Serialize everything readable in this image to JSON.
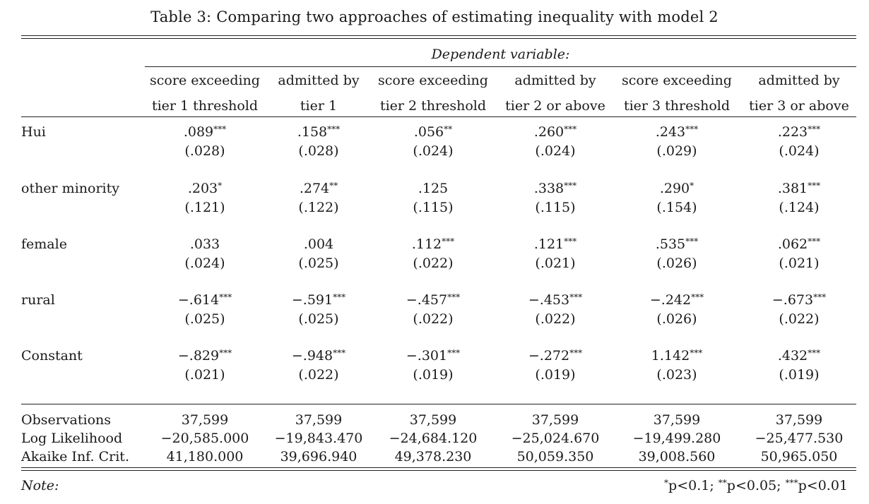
{
  "caption": "Table 3: Comparing two approaches of estimating inequality with model 2",
  "dependent_variable_label": "Dependent variable:",
  "columns": [
    {
      "line1": "score exceeding",
      "line2": "tier 1 threshold"
    },
    {
      "line1": "admitted by",
      "line2": "tier 1"
    },
    {
      "line1": "score exceeding",
      "line2": "tier 2 threshold"
    },
    {
      "line1": "admitted by",
      "line2": "tier 2 or above"
    },
    {
      "line1": "score exceeding",
      "line2": "tier 3 threshold"
    },
    {
      "line1": "admitted by",
      "line2": "tier 3 or above"
    }
  ],
  "rows": [
    {
      "label": "Hui",
      "coefs": [
        ".089",
        ".158",
        ".056",
        ".260",
        ".243",
        ".223"
      ],
      "stars": [
        "***",
        "***",
        "**",
        "***",
        "***",
        "***"
      ],
      "ses": [
        "(.028)",
        "(.028)",
        "(.024)",
        "(.024)",
        "(.029)",
        "(.024)"
      ]
    },
    {
      "label": "other minority",
      "coefs": [
        ".203",
        ".274",
        ".125",
        ".338",
        ".290",
        ".381"
      ],
      "stars": [
        "*",
        "**",
        "",
        "***",
        "*",
        "***"
      ],
      "ses": [
        "(.121)",
        "(.122)",
        "(.115)",
        "(.115)",
        "(.154)",
        "(.124)"
      ]
    },
    {
      "label": "female",
      "coefs": [
        ".033",
        ".004",
        ".112",
        ".121",
        ".535",
        ".062"
      ],
      "stars": [
        "",
        "",
        "***",
        "***",
        "***",
        "***"
      ],
      "ses": [
        "(.024)",
        "(.025)",
        "(.022)",
        "(.021)",
        "(.026)",
        "(.021)"
      ]
    },
    {
      "label": "rural",
      "coefs": [
        "−.614",
        "−.591",
        "−.457",
        "−.453",
        "−.242",
        "−.673"
      ],
      "stars": [
        "***",
        "***",
        "***",
        "***",
        "***",
        "***"
      ],
      "ses": [
        "(.025)",
        "(.025)",
        "(.022)",
        "(.022)",
        "(.026)",
        "(.022)"
      ]
    },
    {
      "label": "Constant",
      "coefs": [
        "−.829",
        "−.948",
        "−.301",
        "−.272",
        "1.142",
        ".432"
      ],
      "stars": [
        "***",
        "***",
        "***",
        "***",
        "***",
        "***"
      ],
      "ses": [
        "(.021)",
        "(.022)",
        "(.019)",
        "(.019)",
        "(.023)",
        "(.019)"
      ]
    }
  ],
  "stats": [
    {
      "label": "Observations",
      "values": [
        "37,599",
        "37,599",
        "37,599",
        "37,599",
        "37,599",
        "37,599"
      ]
    },
    {
      "label": "Log Likelihood",
      "values": [
        "−20,585.000",
        "−19,843.470",
        "−24,684.120",
        "−25,024.670",
        "−19,499.280",
        "−25,477.530"
      ]
    },
    {
      "label": "Akaike Inf. Crit.",
      "values": [
        "41,180.000",
        "39,696.940",
        "49,378.230",
        "50,059.350",
        "39,008.560",
        "50,965.050"
      ]
    }
  ],
  "note_label": "Note:",
  "note_levels": [
    {
      "stars": "*",
      "text": "p<0.1;"
    },
    {
      "stars": "**",
      "text": "p<0.05;"
    },
    {
      "stars": "***",
      "text": "p<0.01"
    }
  ]
}
